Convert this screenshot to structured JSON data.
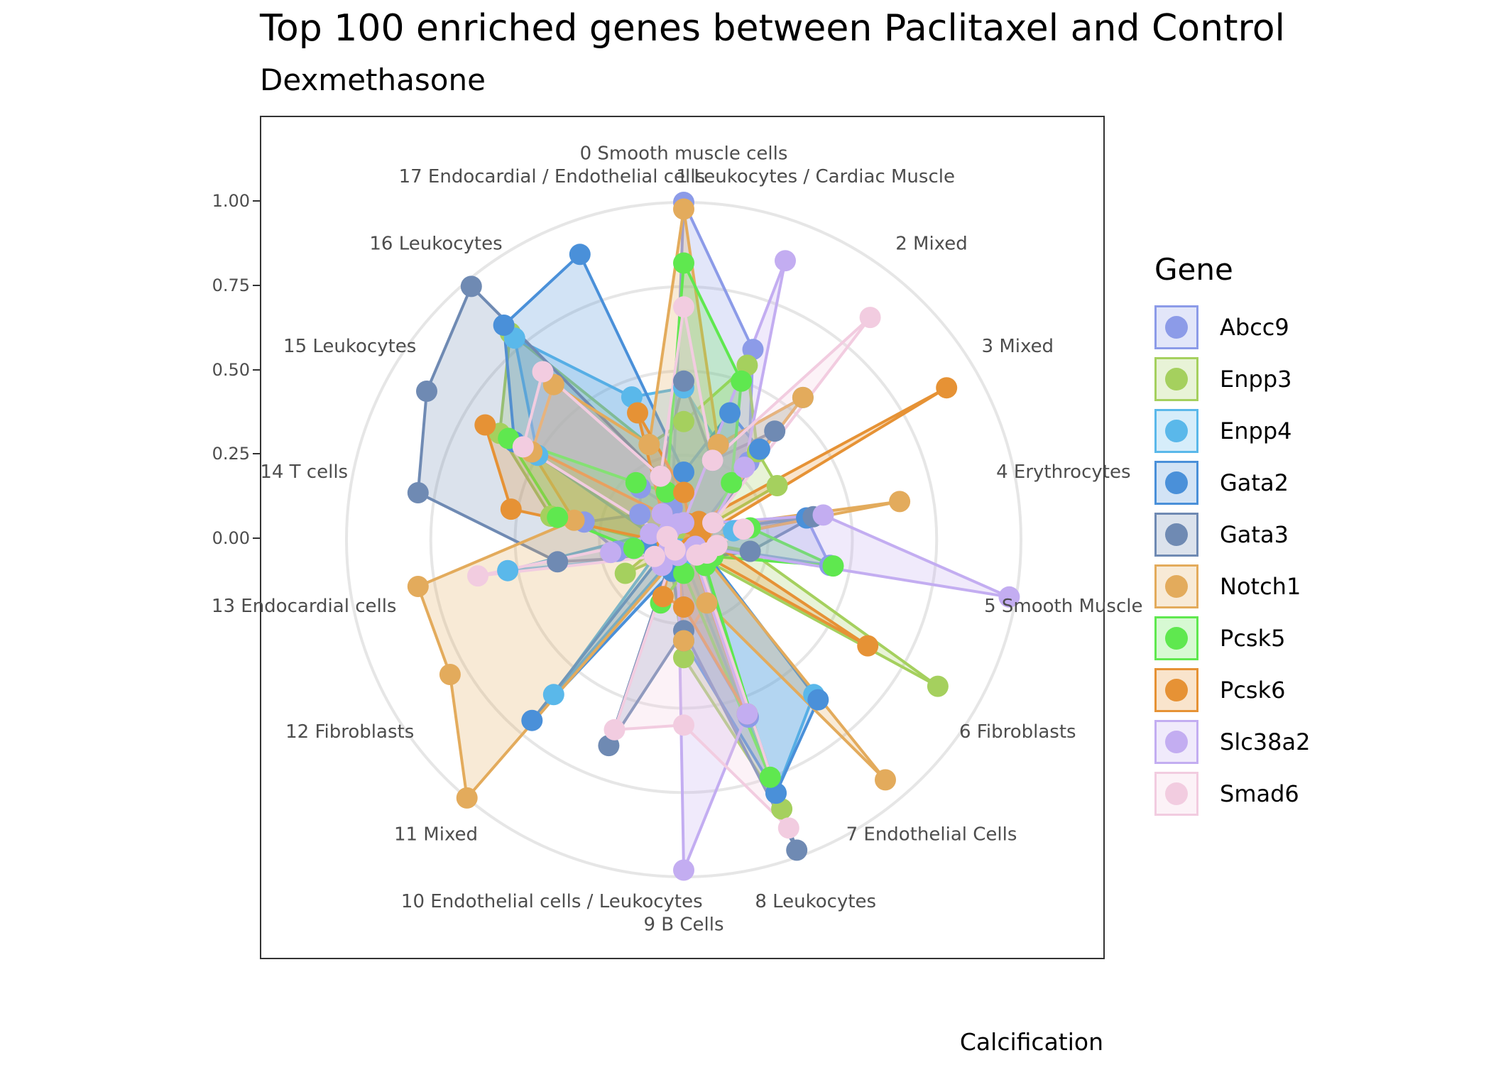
{
  "chart_data": {
    "type": "radar",
    "title": "Top 100 enriched genes between Paclitaxel and Control",
    "subtitle": "Dexmethasone",
    "caption": "Calcification",
    "radial_ticks": [
      "1.00",
      "0.75",
      "0.50",
      "0.25",
      "0.00"
    ],
    "radial_range": [
      0,
      1
    ],
    "grid": true,
    "legend_position": "right",
    "legend_title": "Gene",
    "categories": [
      "0 Smooth muscle cells",
      "1 Leukocytes / Cardiac Muscle",
      "2 Mixed",
      "3 Mixed",
      "4 Erythrocytes",
      "5 Smooth Muscle",
      "6 Fibroblasts",
      "7 Endothelial Cells",
      "8 Leukocytes",
      "9 B Cells",
      "10 Endothelial cells / Leukocytes",
      "11 Mixed",
      "12 Fibroblasts",
      "13 Endocardial cells",
      "14 T cells",
      "15 Leukocytes",
      "16 Leukocytes",
      "17 Endocardial / Endothelial cells"
    ],
    "series": [
      {
        "name": "Abcc9",
        "color": "#8c9be8",
        "values": [
          1.0,
          0.6,
          0.3,
          0.1,
          0.37,
          0.44,
          0.03,
          0.1,
          0.56,
          0.2,
          0.05,
          0.07,
          0.05,
          0.2,
          0.3,
          0.15,
          0.2,
          0.1
        ]
      },
      {
        "name": "Enpp3",
        "color": "#a5d05e",
        "values": [
          0.35,
          0.55,
          0.34,
          0.32,
          0.0,
          0.2,
          0.87,
          0.06,
          0.85,
          0.35,
          0.1,
          0.05,
          0.2,
          0.07,
          0.4,
          0.63,
          0.8,
          0.3
        ]
      },
      {
        "name": "Enpp4",
        "color": "#5ab8ea",
        "values": [
          0.45,
          0.3,
          0.55,
          0.07,
          0.15,
          0.05,
          0.07,
          0.6,
          0.8,
          0.05,
          0.03,
          0.6,
          0.1,
          0.53,
          0.1,
          0.5,
          0.78,
          0.45
        ]
      },
      {
        "name": "Gata2",
        "color": "#4a90d9",
        "values": [
          0.2,
          0.4,
          0.35,
          0.05,
          0.37,
          0.05,
          0.07,
          0.62,
          0.8,
          0.3,
          0.1,
          0.7,
          0.06,
          0.1,
          0.05,
          0.58,
          0.83,
          0.9
        ]
      },
      {
        "name": "Gata3",
        "color": "#6f8ab3",
        "values": [
          0.47,
          0.25,
          0.42,
          0.1,
          0.39,
          0.2,
          0.1,
          0.05,
          0.98,
          0.27,
          0.65,
          0.05,
          0.1,
          0.38,
          0.8,
          0.88,
          0.98,
          0.2
        ]
      },
      {
        "name": "Notch1",
        "color": "#e3ab5c",
        "values": [
          0.98,
          0.3,
          0.55,
          0.07,
          0.65,
          0.03,
          0.05,
          0.93,
          0.2,
          0.3,
          0.05,
          1.0,
          0.8,
          0.8,
          0.33,
          0.52,
          0.6,
          0.3
        ]
      },
      {
        "name": "Pcsk5",
        "color": "#5fe84f",
        "values": [
          0.82,
          0.5,
          0.22,
          0.1,
          0.2,
          0.45,
          0.1,
          0.1,
          0.75,
          0.1,
          0.2,
          0.05,
          0.05,
          0.15,
          0.38,
          0.6,
          0.22,
          0.15
        ]
      },
      {
        "name": "Pcsk6",
        "color": "#e69235",
        "values": [
          0.14,
          0.05,
          0.07,
          0.9,
          0.05,
          0.1,
          0.63,
          0.03,
          0.55,
          0.2,
          0.18,
          0.05,
          0.05,
          0.05,
          0.52,
          0.68,
          0.1,
          0.4
        ]
      },
      {
        "name": "Slc38a2",
        "color": "#c3adf1",
        "values": [
          0.05,
          0.88,
          0.28,
          0.1,
          0.42,
          0.98,
          0.04,
          0.04,
          0.55,
          0.98,
          0.05,
          0.1,
          0.05,
          0.22,
          0.1,
          0.05,
          0.1,
          0.05
        ]
      },
      {
        "name": "Smad6",
        "color": "#f2cce0",
        "values": [
          0.69,
          0.25,
          0.86,
          0.1,
          0.18,
          0.1,
          0.08,
          0.06,
          0.91,
          0.55,
          0.6,
          0.04,
          0.1,
          0.62,
          0.05,
          0.55,
          0.65,
          0.2
        ]
      }
    ]
  }
}
